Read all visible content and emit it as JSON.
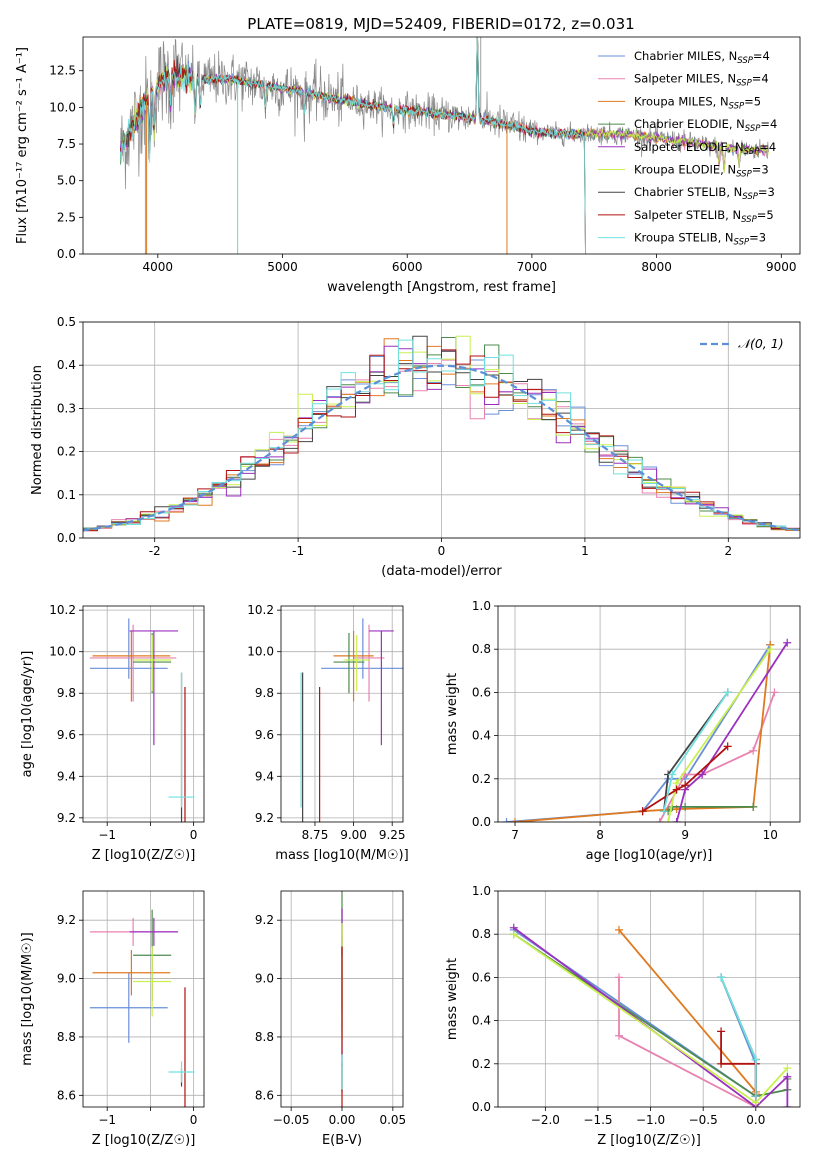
{
  "figure": {
    "title": "PLATE=0819, MJD=52409, FIBERID=0172, z=0.031"
  },
  "colors": {
    "chabrier_miles": "#6a8fd8",
    "salpeter_miles": "#e882b0",
    "kroupa_miles": "#e07a20",
    "chabrier_elodie": "#4c8a4c",
    "salpeter_elodie": "#9b30c0",
    "kroupa_elodie": "#c8f050",
    "chabrier_stelib": "#444444",
    "salpeter_stelib": "#b01010",
    "kroupa_stelib": "#70e0e0"
  },
  "chart_data": [
    {
      "id": "spectrum",
      "type": "line",
      "title": "PLATE=0819, MJD=52409, FIBERID=0172, z=0.031",
      "xlabel": "wavelength [Angstrom, rest frame]",
      "ylabel": "Flux [fλ10⁻¹⁷ erg cm⁻² s⁻¹ A⁻¹]",
      "xlim": [
        3400,
        9150
      ],
      "ylim": [
        0,
        14.8
      ],
      "xticks": [
        4000,
        5000,
        6000,
        7000,
        8000,
        9000
      ],
      "yticks": [
        0.0,
        2.5,
        5.0,
        7.5,
        10.0,
        12.5
      ],
      "ytick_labels": [
        "0.0",
        "2.5",
        "5.0",
        "7.5",
        "10.0",
        "12.5"
      ],
      "legend_position": "top-right",
      "legend": [
        {
          "label": "Chabrier MILES, N",
          "sub": "SSP",
          "suffix": "=4",
          "key": "chabrier_miles"
        },
        {
          "label": "Salpeter MILES, N",
          "sub": "SSP",
          "suffix": "=4",
          "key": "salpeter_miles"
        },
        {
          "label": "Kroupa MILES, N",
          "sub": "SSP",
          "suffix": "=5",
          "key": "kroupa_miles"
        },
        {
          "label": "Chabrier ELODIE, N",
          "sub": "SSP",
          "suffix": "=4",
          "key": "chabrier_elodie"
        },
        {
          "label": "Salpeter ELODIE, N",
          "sub": "SSP",
          "suffix": "=4",
          "key": "salpeter_elodie"
        },
        {
          "label": "Kroupa ELODIE, N",
          "sub": "SSP",
          "suffix": "=3",
          "key": "kroupa_elodie"
        },
        {
          "label": "Chabrier STELIB, N",
          "sub": "SSP",
          "suffix": "=3",
          "key": "chabrier_stelib"
        },
        {
          "label": "Salpeter STELIB, N",
          "sub": "SSP",
          "suffix": "=5",
          "key": "salpeter_stelib"
        },
        {
          "label": "Kroupa STELIB, N",
          "sub": "SSP",
          "suffix": "=3",
          "key": "kroupa_stelib"
        }
      ],
      "data_color": "#888888",
      "continuum": [
        [
          3700,
          7.0
        ],
        [
          3800,
          8.8
        ],
        [
          3900,
          10.2
        ],
        [
          4000,
          11.6
        ],
        [
          4100,
          12.3
        ],
        [
          4200,
          12.1
        ],
        [
          4400,
          11.9
        ],
        [
          4600,
          11.9
        ],
        [
          4800,
          11.6
        ],
        [
          5000,
          11.3
        ],
        [
          5200,
          11.0
        ],
        [
          5400,
          10.6
        ],
        [
          5600,
          10.3
        ],
        [
          5800,
          10.0
        ],
        [
          6000,
          9.8
        ],
        [
          6200,
          9.6
        ],
        [
          6400,
          9.4
        ],
        [
          6600,
          9.2
        ],
        [
          6800,
          8.8
        ],
        [
          7000,
          8.4
        ],
        [
          7200,
          8.2
        ],
        [
          7400,
          8.2
        ],
        [
          7600,
          8.2
        ],
        [
          7800,
          8.1
        ],
        [
          8000,
          7.9
        ],
        [
          8200,
          7.7
        ],
        [
          8400,
          7.4
        ],
        [
          8600,
          7.2
        ],
        [
          8800,
          7.1
        ],
        [
          8900,
          7.1
        ]
      ]
    },
    {
      "id": "residuals",
      "type": "line",
      "xlabel": "(data-model)/error",
      "ylabel": "Normed distribution",
      "xlim": [
        -2.5,
        2.5
      ],
      "ylim": [
        0,
        0.5
      ],
      "xticks": [
        -2,
        -1,
        0,
        1,
        2
      ],
      "yticks": [
        0.0,
        0.1,
        0.2,
        0.3,
        0.4,
        0.5
      ],
      "ytick_labels": [
        "0.0",
        "0.1",
        "0.2",
        "0.3",
        "0.4",
        "0.5"
      ],
      "grid": true,
      "legend_position": "top-right",
      "gaussian_label": "𝒩(0, 1)",
      "gaussian_color": "#5b8fd8",
      "bin_width": 0.1
    },
    {
      "id": "age_vs_Z",
      "type": "scatter",
      "xlabel": "Z [log10(Z/Z☉)]",
      "ylabel": "age  [log10(age/yr)]",
      "xlim": [
        -1.28,
        0.12
      ],
      "ylim": [
        9.18,
        10.22
      ],
      "xticks": [
        -1,
        -0.5,
        0
      ],
      "xtick_labels": [
        "−1",
        "",
        "0"
      ],
      "yticks": [
        9.2,
        9.4,
        9.6,
        9.8,
        10.0,
        10.2
      ],
      "ytick_labels": [
        "9.2",
        "9.4",
        "9.6",
        "9.8",
        "10.0",
        "10.2"
      ],
      "grid": true
    },
    {
      "id": "age_vs_mass",
      "type": "scatter",
      "xlabel": "mass [log10(M/M☉)]",
      "ylabel": "",
      "xlim": [
        8.53,
        9.32
      ],
      "ylim": [
        9.18,
        10.22
      ],
      "xticks": [
        8.75,
        9.0,
        9.25
      ],
      "xtick_labels": [
        "8.75",
        "9.00",
        "9.25"
      ],
      "yticks": [
        9.2,
        9.4,
        9.6,
        9.8,
        10.0,
        10.2
      ],
      "ytick_labels": [
        "9.2",
        "9.4",
        "9.6",
        "9.8",
        "10.0",
        "10.2"
      ],
      "grid": true
    },
    {
      "id": "mass_weight_vs_age",
      "type": "line",
      "xlabel": "age  [log10(age/yr)]",
      "ylabel": "mass weight",
      "xlim": [
        6.8,
        10.35
      ],
      "ylim": [
        0,
        1.0
      ],
      "xticks": [
        7,
        8,
        9,
        10
      ],
      "yticks": [
        0.0,
        0.2,
        0.4,
        0.6,
        0.8,
        1.0
      ],
      "ytick_labels": [
        "0.0",
        "0.2",
        "0.4",
        "0.6",
        "0.8",
        "1.0"
      ],
      "grid": true
    },
    {
      "id": "mass_vs_Z",
      "type": "scatter",
      "xlabel": "Z [log10(Z/Z☉)]",
      "ylabel": "mass [log10(M/M☉)]",
      "xlim": [
        -1.28,
        0.12
      ],
      "ylim": [
        8.56,
        9.3
      ],
      "xticks": [
        -1,
        -0.5,
        0
      ],
      "xtick_labels": [
        "−1",
        "",
        "0"
      ],
      "yticks": [
        8.6,
        8.8,
        9.0,
        9.2
      ],
      "ytick_labels": [
        "8.6",
        "8.8",
        "9.0",
        "9.2"
      ],
      "grid": true
    },
    {
      "id": "mass_vs_ebv",
      "type": "scatter",
      "xlabel": "E(B-V)",
      "ylabel": "",
      "xlim": [
        -0.06,
        0.06
      ],
      "ylim": [
        8.56,
        9.3
      ],
      "xticks": [
        -0.05,
        0.0,
        0.05
      ],
      "xtick_labels": [
        "−0.05",
        "0.00",
        "0.05"
      ],
      "yticks": [
        8.6,
        8.8,
        9.0,
        9.2
      ],
      "ytick_labels": [
        "8.6",
        "8.8",
        "9.0",
        "9.2"
      ],
      "grid": true
    },
    {
      "id": "mass_weight_vs_Z",
      "type": "line",
      "xlabel": "Z [log10(Z/Z☉)]",
      "ylabel": "mass weight",
      "xlim": [
        -2.45,
        0.42
      ],
      "ylim": [
        0,
        1.0
      ],
      "xticks": [
        -2.0,
        -1.5,
        -1.0,
        -0.5,
        0.0
      ],
      "xtick_labels": [
        "−2.0",
        "−1.5",
        "−1.0",
        "−0.5",
        "0.0"
      ],
      "yticks": [
        0.0,
        0.2,
        0.4,
        0.6,
        0.8,
        1.0
      ],
      "ytick_labels": [
        "0.0",
        "0.2",
        "0.4",
        "0.6",
        "0.8",
        "1.0"
      ],
      "grid": true
    }
  ],
  "model_results": [
    {
      "key": "chabrier_miles",
      "Z": -0.75,
      "Z_err": 0.45,
      "age": 9.92,
      "age_err_lo": 0.0,
      "age_err_hi": 0.24,
      "mass": 8.9,
      "mass_err": 0.2,
      "age_mass_x": 9.06,
      "age_mass_xerr": 0.27,
      "weights_age": [
        [
          6.9,
          0.0
        ],
        [
          8.5,
          0.05
        ],
        [
          8.8,
          0.2
        ],
        [
          9.0,
          0.2
        ],
        [
          10.0,
          0.82
        ]
      ],
      "weights_Z": [
        [
          -2.3,
          0.82
        ],
        [
          0.0,
          0.05
        ],
        [
          0.0,
          0.2
        ],
        [
          -0.33,
          0.6
        ]
      ]
    },
    {
      "key": "salpeter_miles",
      "Z": -0.7,
      "Z_err": 0.5,
      "age": 9.97,
      "age_err_lo": 0.16,
      "age_err_hi": 0.16,
      "mass": 9.16,
      "mass_err": 0.08,
      "age_mass_x": 9.1,
      "age_mass_xerr": 0.1,
      "weights_age": [
        [
          8.7,
          0.0
        ],
        [
          9.0,
          0.22
        ],
        [
          9.2,
          0.22
        ],
        [
          9.8,
          0.33
        ],
        [
          10.05,
          0.6
        ]
      ],
      "weights_Z": [
        [
          -1.3,
          0.6
        ],
        [
          -1.3,
          0.33
        ],
        [
          0.0,
          0.0
        ],
        [
          0.0,
          0.05
        ]
      ]
    },
    {
      "key": "kroupa_miles",
      "Z": -0.72,
      "Z_err": 0.45,
      "age": 9.98,
      "age_err_lo": 0.17,
      "age_err_hi": 0.12,
      "mass": 9.02,
      "mass_err": 0.13,
      "age_mass_x": 9.0,
      "age_mass_xerr": 0.13,
      "weights_age": [
        [
          7.0,
          0.0
        ],
        [
          8.5,
          0.05
        ],
        [
          8.9,
          0.06
        ],
        [
          9.8,
          0.07
        ],
        [
          10.0,
          0.82
        ]
      ],
      "weights_Z": [
        [
          -1.3,
          0.82
        ],
        [
          0.0,
          0.07
        ],
        [
          0.0,
          0.06
        ],
        [
          0.0,
          0.05
        ]
      ]
    },
    {
      "key": "chabrier_elodie",
      "Z": -0.48,
      "Z_err": 0.22,
      "age": 9.95,
      "age_err_lo": 0.1,
      "age_err_hi": 0.14,
      "mass": 9.08,
      "mass_err": 0.26,
      "age_mass_x": 8.97,
      "age_mass_xerr": 0.1,
      "weights_age": [
        [
          8.8,
          0.05
        ],
        [
          8.85,
          0.07
        ],
        [
          9.0,
          0.07
        ],
        [
          9.8,
          0.07
        ]
      ],
      "weights_Z": [
        [
          -2.3,
          0.8
        ],
        [
          0.0,
          0.05
        ],
        [
          0.3,
          0.08
        ],
        [
          0.3,
          0.13
        ]
      ]
    },
    {
      "key": "salpeter_elodie",
      "Z": -0.46,
      "Z_err": 0.28,
      "age": 10.1,
      "age_err_lo": 0.5,
      "age_err_hi": 0.0,
      "mass": 9.16,
      "mass_err": 0.08,
      "age_mass_x": 9.18,
      "age_mass_xerr": 0.08,
      "weights_age": [
        [
          8.9,
          0.0
        ],
        [
          9.0,
          0.15
        ],
        [
          9.2,
          0.22
        ],
        [
          10.2,
          0.83
        ]
      ],
      "weights_Z": [
        [
          -2.3,
          0.83
        ],
        [
          0.0,
          0.0
        ],
        [
          0.3,
          0.14
        ],
        [
          0.3,
          0.0
        ]
      ]
    },
    {
      "key": "kroupa_elodie",
      "Z": -0.48,
      "Z_err": 0.22,
      "age": 9.96,
      "age_err_lo": 0.1,
      "age_err_hi": 0.12,
      "mass": 8.99,
      "mass_err": 0.2,
      "age_mass_x": 9.02,
      "age_mass_xerr": 0.08,
      "weights_age": [
        [
          8.8,
          0.0
        ],
        [
          8.9,
          0.18
        ],
        [
          10.0,
          0.8
        ]
      ],
      "weights_Z": [
        [
          -2.3,
          0.8
        ],
        [
          0.0,
          0.02
        ],
        [
          0.3,
          0.18
        ]
      ]
    },
    {
      "key": "chabrier_stelib",
      "Z": -0.14,
      "Z_err": 0.0,
      "age": 9.3,
      "age_err_lo": 0.1,
      "age_err_hi": 0.6,
      "mass": 8.66,
      "mass_err": 0.05,
      "age_mass_x": 8.67,
      "age_mass_xerr": 0.0,
      "weights_age": [
        [
          8.75,
          0.05
        ],
        [
          8.8,
          0.22
        ],
        [
          9.5,
          0.6
        ]
      ],
      "weights_Z": [
        [
          -0.33,
          0.6
        ],
        [
          0.0,
          0.22
        ],
        [
          0.0,
          0.05
        ]
      ]
    },
    {
      "key": "salpeter_stelib",
      "Z": -0.1,
      "Z_err": 0.0,
      "age": 9.23,
      "age_err_lo": 0.0,
      "age_err_hi": 0.6,
      "mass": 8.76,
      "mass_err": 0.35,
      "age_mass_x": 8.78,
      "age_mass_xerr": 0.0,
      "weights_age": [
        [
          8.5,
          0.05
        ],
        [
          8.9,
          0.15
        ],
        [
          9.0,
          0.17
        ],
        [
          9.5,
          0.35
        ]
      ],
      "weights_Z": [
        [
          -0.33,
          0.35
        ],
        [
          -0.33,
          0.2
        ],
        [
          0.0,
          0.2
        ],
        [
          0.0,
          0.05
        ]
      ]
    },
    {
      "key": "kroupa_stelib",
      "Z": -0.14,
      "Z_err": 0.15,
      "age": 9.3,
      "age_err_lo": 0.0,
      "age_err_hi": 0.6,
      "mass": 8.68,
      "mass_err": 0.06,
      "age_mass_x": 8.66,
      "age_mass_xerr": 0.0,
      "weights_age": [
        [
          8.75,
          0.05
        ],
        [
          8.85,
          0.22
        ],
        [
          9.5,
          0.6
        ]
      ],
      "weights_Z": [
        [
          -0.33,
          0.6
        ],
        [
          0.0,
          0.22
        ],
        [
          0.0,
          0.05
        ]
      ]
    }
  ]
}
